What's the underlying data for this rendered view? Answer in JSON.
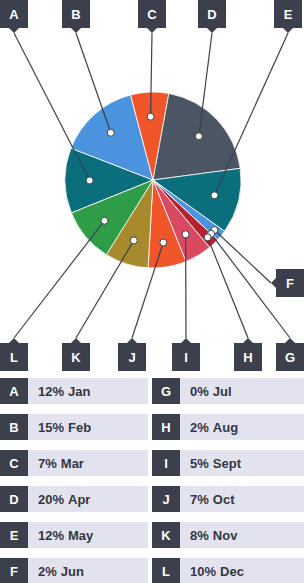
{
  "chart_data": {
    "type": "pie",
    "callouts": [
      "A",
      "B",
      "C",
      "D",
      "E",
      "F",
      "G",
      "H",
      "I",
      "J",
      "K",
      "L"
    ],
    "categories": [
      "Jan",
      "Feb",
      "Mar",
      "Apr",
      "May",
      "Jun",
      "Jul",
      "Aug",
      "Sept",
      "Oct",
      "Nov",
      "Dec"
    ],
    "values": [
      12,
      15,
      7,
      20,
      12,
      2,
      0,
      2,
      5,
      7,
      8,
      10
    ],
    "value_labels": [
      "12%",
      "15%",
      "7%",
      "20%",
      "12%",
      "2%",
      "0%",
      "2%",
      "5%",
      "7%",
      "8%",
      "10%"
    ],
    "colors": [
      "#0b6e7c",
      "#4b93dc",
      "#f0562a",
      "#4b5564",
      "#0b6e7c",
      "#4b93dc",
      "#8a8f99",
      "#b5222e",
      "#d94a60",
      "#f0562a",
      "#a68a2c",
      "#2f9c48"
    ]
  }
}
